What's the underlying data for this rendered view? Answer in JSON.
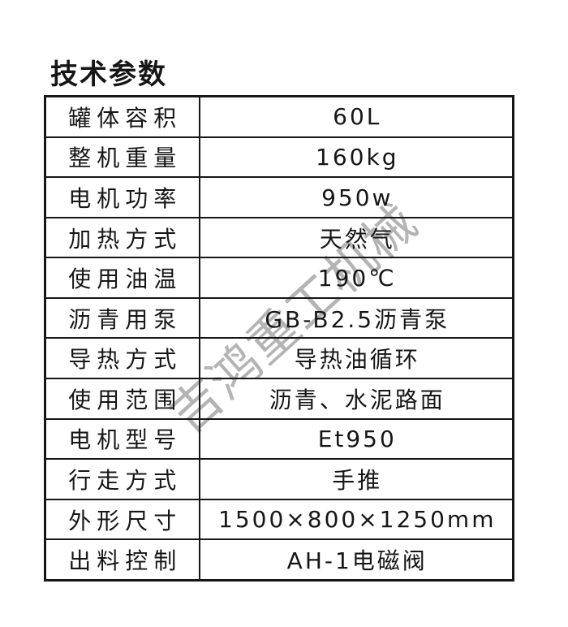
{
  "page": {
    "title": "技术参数",
    "background_color": "#ffffff",
    "text_color": "#161616",
    "border_color": "#161616"
  },
  "watermark": {
    "text": "吉鸿重工机械",
    "color": "#b4b4b4"
  },
  "spec_table": {
    "rows": [
      {
        "label": "罐体容积",
        "value": "60L"
      },
      {
        "label": "整机重量",
        "value": "160kg"
      },
      {
        "label": "电机功率",
        "value": "950w"
      },
      {
        "label": "加热方式",
        "value": "天然气"
      },
      {
        "label": "使用油温",
        "value": "190℃"
      },
      {
        "label": "沥青用泵",
        "value": "GB-B2.5沥青泵"
      },
      {
        "label": "导热方式",
        "value": "导热油循环"
      },
      {
        "label": "使用范围",
        "value": "沥青、水泥路面"
      },
      {
        "label": "电机型号",
        "value": "Et950"
      },
      {
        "label": "行走方式",
        "value": "手推"
      },
      {
        "label": "外形尺寸",
        "value": "1500×800×1250mm"
      },
      {
        "label": "出料控制",
        "value": "AH-1电磁阀"
      }
    ]
  }
}
